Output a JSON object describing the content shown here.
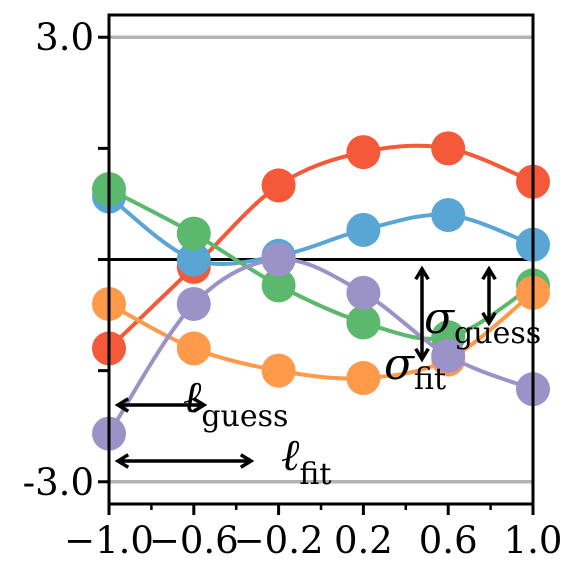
{
  "chart_data": {
    "type": "line",
    "title": "",
    "xlabel": "",
    "ylabel": "",
    "xlim": [
      -1.0,
      1.0
    ],
    "ylim": [
      -3.3,
      3.3
    ],
    "x_ticks": [
      -1.0,
      -0.6,
      -0.2,
      0.2,
      0.6,
      1.0
    ],
    "x_tick_labels": [
      "−1.0",
      "−0.6",
      "−0.2",
      "0.2",
      "0.6",
      "1.0"
    ],
    "y_ticks_labeled": [
      3.0,
      -3.0
    ],
    "y_tick_labels": [
      "3.0",
      "-3.0"
    ],
    "reference_lines": [
      3.0,
      0.0,
      -3.0
    ],
    "x": [
      -1.0,
      -0.6,
      -0.2,
      0.2,
      0.6,
      1.0
    ],
    "series": [
      {
        "color": "#f4593a",
        "values": [
          -1.2,
          -0.1,
          1.0,
          1.45,
          1.5,
          1.05
        ]
      },
      {
        "color": "#59a5d4",
        "values": [
          0.85,
          0.0,
          0.05,
          0.4,
          0.6,
          0.2
        ]
      },
      {
        "color": "#5cb86c",
        "values": [
          0.95,
          0.35,
          -0.35,
          -0.85,
          -1.05,
          -0.35
        ]
      },
      {
        "color": "#ff9a4a",
        "values": [
          -0.6,
          -1.2,
          -1.5,
          -1.6,
          -1.35,
          -0.45
        ]
      },
      {
        "color": "#9b93c8",
        "values": [
          -2.35,
          -0.6,
          0.0,
          -0.45,
          -1.3,
          -1.75
        ]
      }
    ],
    "annotations": {
      "l_guess": {
        "symbol": "ℓ",
        "sub": "guess"
      },
      "l_fit": {
        "symbol": "ℓ",
        "sub": "fit"
      },
      "sigma_guess": {
        "symbol": "σ",
        "sub": "guess"
      },
      "sigma_fit": {
        "symbol": "σ",
        "sub": "fit"
      }
    }
  }
}
